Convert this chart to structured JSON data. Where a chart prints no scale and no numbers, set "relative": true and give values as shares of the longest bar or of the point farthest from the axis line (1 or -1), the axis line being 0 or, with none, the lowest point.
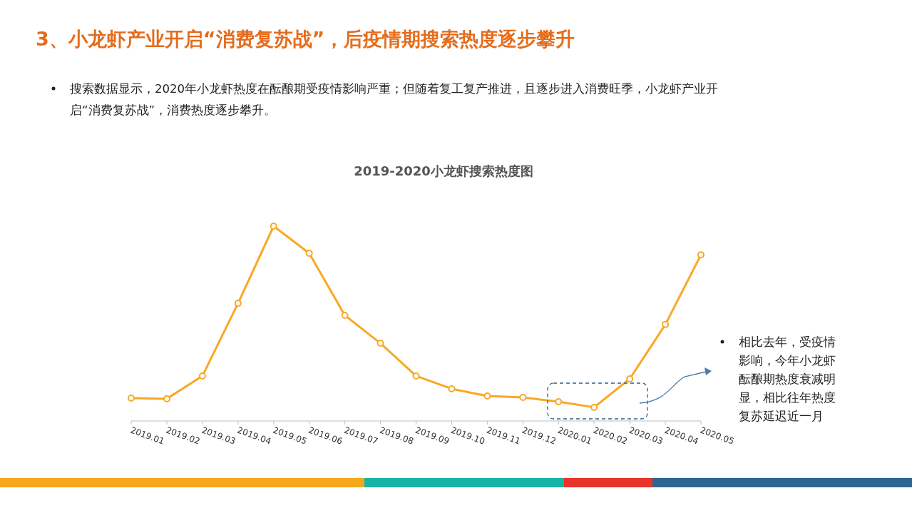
{
  "chart_data": {
    "type": "line",
    "title": "2019-2020小龙虾搜索热度图",
    "relative": true,
    "categories": [
      "2019.01",
      "2019.02",
      "2019.03",
      "2019.04",
      "2019.05",
      "2019.06",
      "2019.07",
      "2019.08",
      "2019.09",
      "2019.10",
      "2019.11",
      "2019.12",
      "2020.01",
      "2020.02",
      "2020.03",
      "2020.04",
      "2020.05"
    ],
    "series": [
      {
        "color": "#f9a825",
        "values": [
          0.117,
          0.114,
          0.231,
          0.604,
          1,
          0.861,
          0.542,
          0.399,
          0.231,
          0.165,
          0.128,
          0.121,
          0.099,
          0.07,
          0.216,
          0.495,
          0.853
        ]
      }
    ],
    "marker": "circle",
    "annotations": [
      "3、小龙虾产业开启“消费复苏战”，后疫情期搜索热度逐步攀升",
      "搜索数据显示，2020年小龙虾热度在酝酿期受疫情影响严重；但随着复工复产推进，且逐步进入消费旺季，小龙虾产业开启“消费复苏战”，消费热度逐步攀升。",
      "相比去年，受疫情影响，今年小龙虾酝酿期热度衰减明显，相比往年热度复苏延迟近一月"
    ]
  }
}
